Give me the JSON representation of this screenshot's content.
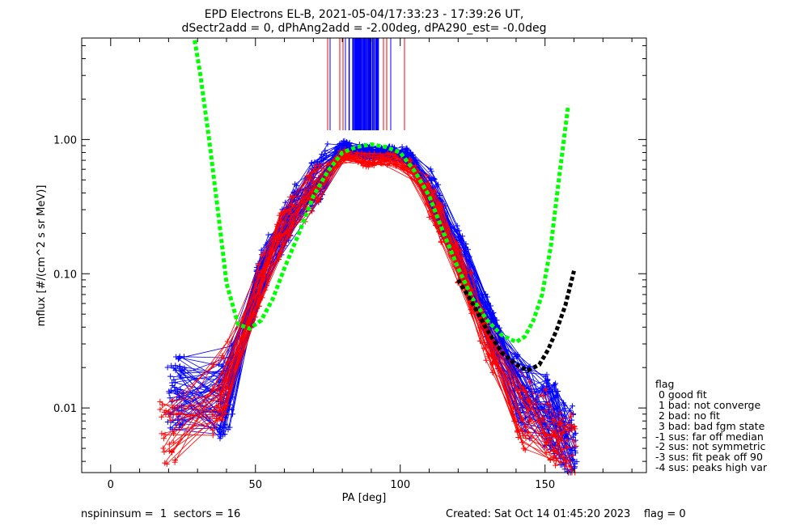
{
  "title_line1": "EPD Electrons EL-B, 2021-05-04/17:33:23 - 17:39:26 UT,",
  "title_line2": "dSectr2add = 0, dPhAng2add = -2.00deg, dPA290_est=  -0.0deg",
  "legend": {
    "title": "flag",
    "items": [
      " 0 good fit",
      " 1 bad: not converge",
      " 2 bad: no fit",
      " 3 bad: bad fgm state",
      "-1 sus: far off median",
      "-2 sus: not symmetric",
      "-3 sus: fit peak off 90",
      "-4 sus: peaks high var"
    ]
  },
  "footer": {
    "left": "nspininsum =  1  sectors = 16",
    "right": "Created: Sat Oct 14 01:45:20 2023    flag = 0"
  },
  "colors": {
    "series_blue": "#0000ff",
    "series_red": "#ff0000",
    "fit_green": "#00ff00",
    "fit_black": "#000000",
    "axes": "#000000",
    "background": "#ffffff"
  },
  "chart_data": {
    "type": "line",
    "xlabel": "PA [deg]",
    "ylabel": "mflux [#/(cm^2 s sr MeV)]",
    "xlim": [
      -10,
      185
    ],
    "ylim": [
      0.0033,
      5.7
    ],
    "yscale": "log",
    "x_ticks": [
      0,
      50,
      100,
      150
    ],
    "y_ticks": [
      0.01,
      0.1,
      1.0
    ],
    "y_tick_labels": [
      "0.01",
      "0.10",
      "1.00"
    ],
    "grid": false,
    "legend_position": "right, outside plot",
    "series": [
      {
        "color": "blue",
        "description_style": "many thin lines with + markers",
        "x": [
          22.5,
          40,
          52,
          62,
          72,
          80,
          88,
          95,
          103,
          113,
          122,
          132,
          142,
          152,
          158
        ],
        "y": [
          0.013,
          0.011,
          0.1,
          0.28,
          0.52,
          0.88,
          0.8,
          0.8,
          0.78,
          0.33,
          0.12,
          0.035,
          0.012,
          0.009,
          0.006
        ]
      },
      {
        "color": "red",
        "description_style": "thin lines with + markers",
        "x": [
          20,
          38,
          52,
          60,
          70,
          80,
          88,
          96,
          104,
          112,
          122,
          130,
          142,
          152,
          158
        ],
        "y": [
          0.007,
          0.012,
          0.09,
          0.22,
          0.42,
          0.78,
          0.7,
          0.72,
          0.65,
          0.3,
          0.1,
          0.03,
          0.009,
          0.007,
          0.005
        ]
      },
      {
        "color": "green",
        "description_style": "thick dashed fit",
        "x": [
          29,
          31,
          34,
          37,
          40,
          44,
          48,
          52,
          56,
          60,
          65,
          70,
          75,
          80,
          85,
          90,
          95,
          100,
          105,
          110,
          115,
          120,
          125,
          130,
          135,
          140,
          143,
          146,
          149,
          152,
          155,
          158
        ],
        "y": [
          5.5,
          3.0,
          1.0,
          0.3,
          0.085,
          0.042,
          0.039,
          0.045,
          0.065,
          0.11,
          0.2,
          0.38,
          0.58,
          0.8,
          0.88,
          0.92,
          0.88,
          0.8,
          0.58,
          0.38,
          0.2,
          0.11,
          0.065,
          0.045,
          0.035,
          0.031,
          0.034,
          0.045,
          0.07,
          0.16,
          0.55,
          1.8
        ]
      },
      {
        "color": "black",
        "description_style": "thick dashed fit",
        "x": [
          120,
          125,
          130,
          135,
          140,
          144,
          148,
          151,
          154,
          157,
          160
        ],
        "y": [
          0.09,
          0.06,
          0.038,
          0.026,
          0.021,
          0.019,
          0.021,
          0.027,
          0.038,
          0.058,
          0.105
        ]
      }
    ]
  }
}
